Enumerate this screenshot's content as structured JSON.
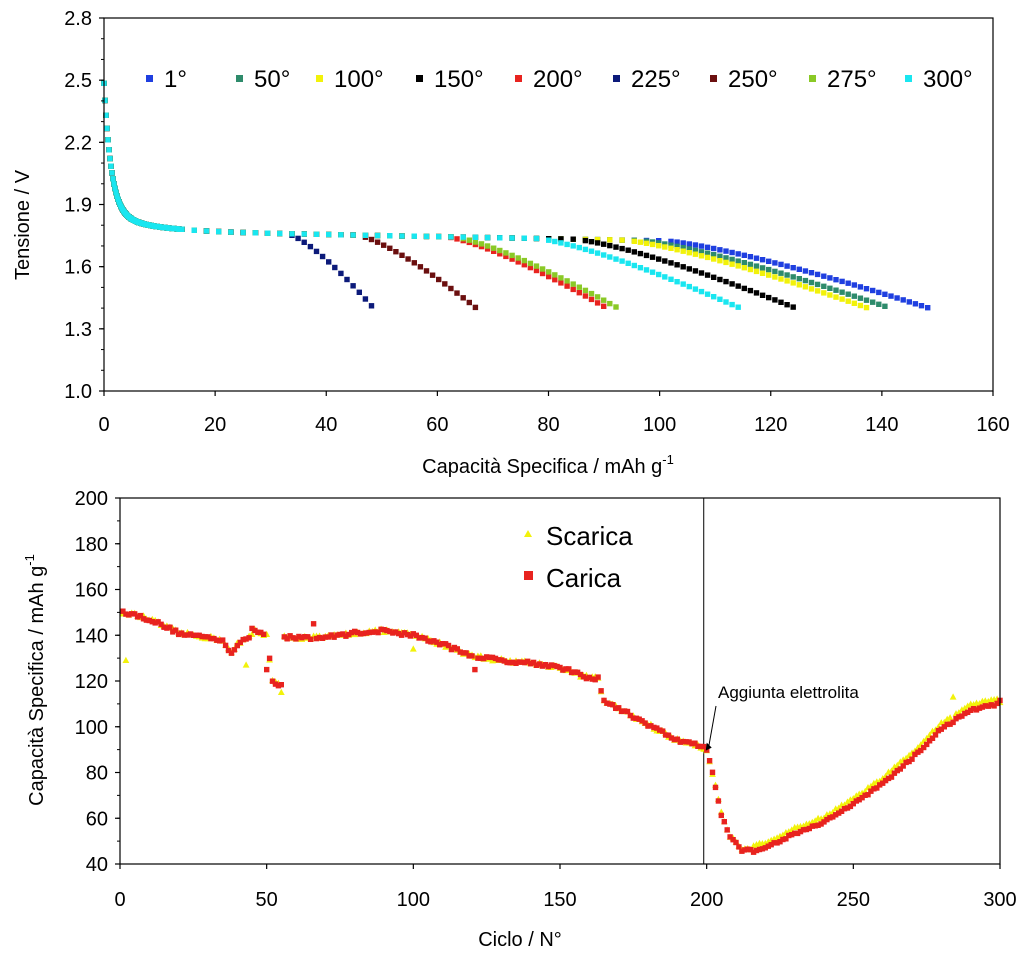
{
  "chart_data": [
    {
      "type": "scatter",
      "title": "",
      "xlabel": "Capacità Specifica / mAh g",
      "xlabel_sup": "-1",
      "ylabel": "Tensione / V",
      "xlim": [
        0,
        160
      ],
      "ylim": [
        1.0,
        2.8
      ],
      "xticks": [
        "0",
        "20",
        "40",
        "60",
        "80",
        "100",
        "120",
        "140",
        "160"
      ],
      "yticks": [
        "1.0",
        "1.3",
        "1.6",
        "1.9",
        "2.2",
        "2.5",
        "2.8"
      ],
      "grid": false,
      "legend": "top",
      "series": [
        {
          "name": "1°",
          "color": "#1f3fe0",
          "end_capacity": 148.5
        },
        {
          "name": "50°",
          "color": "#2e8b6b",
          "end_capacity": 141.5
        },
        {
          "name": "100°",
          "color": "#f2f20a",
          "end_capacity": 137.5
        },
        {
          "name": "150°",
          "color": "#000000",
          "end_capacity": 124.5
        },
        {
          "name": "200°",
          "color": "#e8231f",
          "end_capacity": 90.5
        },
        {
          "name": "225°",
          "color": "#0c1a7a",
          "end_capacity": 48.5
        },
        {
          "name": "250°",
          "color": "#6b0f0f",
          "end_capacity": 67.0
        },
        {
          "name": "275°",
          "color": "#8ac926",
          "end_capacity": 92.5
        },
        {
          "name": "300°",
          "color": "#19e6f0",
          "end_capacity": 114.5
        }
      ]
    },
    {
      "type": "scatter",
      "title": "",
      "xlabel": "Ciclo / N°",
      "ylabel": "Capacità Specifica / mAh g",
      "ylabel_sup": "-1",
      "xlim": [
        0,
        300
      ],
      "ylim": [
        40,
        200
      ],
      "xticks": [
        "0",
        "50",
        "100",
        "150",
        "200",
        "250",
        "300"
      ],
      "yticks": [
        "40",
        "60",
        "80",
        "100",
        "120",
        "140",
        "160",
        "180",
        "200"
      ],
      "grid": false,
      "legend": "top-center",
      "vline_x": 199,
      "annotation": {
        "text": "Aggiunta elettrolita",
        "x": 199,
        "y": 90
      },
      "series": [
        {
          "name": "Scarica",
          "color": "#f2f20a",
          "marker": "triangle"
        },
        {
          "name": "Carica",
          "color": "#e8231f",
          "marker": "square"
        }
      ],
      "trend_x": [
        0,
        2,
        10,
        20,
        35,
        38,
        40,
        43,
        46,
        50,
        52,
        55,
        56,
        65,
        70,
        80,
        90,
        100,
        110,
        120,
        125,
        130,
        140,
        150,
        158,
        163,
        165,
        170,
        180,
        190,
        195,
        200,
        202,
        205,
        208,
        212,
        215,
        220,
        230,
        240,
        250,
        260,
        270,
        280,
        290,
        300
      ],
      "trend_y": [
        150,
        150,
        147,
        141,
        138,
        132,
        136,
        138,
        142,
        140,
        120,
        118,
        139,
        139,
        139,
        141,
        142,
        140,
        136,
        131,
        130,
        129,
        128,
        126,
        122,
        121,
        111,
        108,
        101,
        94,
        93,
        90,
        80,
        62,
        52,
        46,
        46,
        48,
        54,
        59,
        67,
        76,
        87,
        100,
        108,
        111
      ]
    }
  ]
}
